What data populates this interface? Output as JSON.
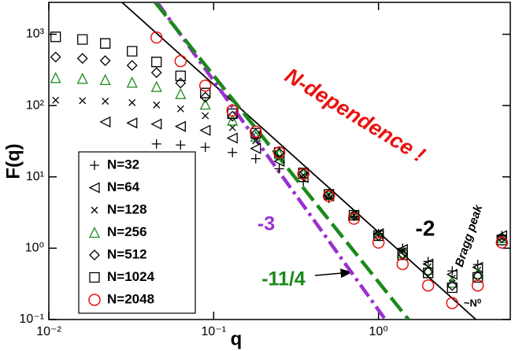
{
  "chart_data": {
    "type": "scatter",
    "xlabel": "q",
    "ylabel": "F(q)",
    "log_x": true,
    "log_y": true,
    "xlim": [
      0.01,
      6.3
    ],
    "ylim": [
      0.1,
      2800
    ],
    "xticks": [
      {
        "value": 0.01,
        "label": "10⁻²"
      },
      {
        "value": 0.1,
        "label": "10⁻¹"
      },
      {
        "value": 1,
        "label": "10⁰"
      }
    ],
    "yticks": [
      {
        "value": 0.1,
        "label": "10⁻¹"
      },
      {
        "value": 1,
        "label": "10⁰"
      },
      {
        "value": 10,
        "label": "10¹"
      },
      {
        "value": 100,
        "label": "10²"
      },
      {
        "value": 1000,
        "label": "10³"
      }
    ],
    "legend": "lower left",
    "series": [
      {
        "name": "N=32",
        "marker": "plus",
        "color": "#000000",
        "x": [
          0.045,
          0.063,
          0.089,
          0.13,
          0.18,
          0.25,
          0.35,
          0.5,
          0.71,
          1.0,
          1.4,
          2.0,
          2.8,
          4.0,
          5.6
        ],
        "values": [
          29,
          28,
          26,
          22,
          18,
          13,
          8.6,
          5.0,
          2.8,
          1.6,
          1.0,
          0.65,
          0.48,
          0.59,
          1.5
        ]
      },
      {
        "name": "N=64",
        "marker": "triangle-left",
        "color": "#000000",
        "x": [
          0.022,
          0.032,
          0.045,
          0.063,
          0.089,
          0.13,
          0.18,
          0.25,
          0.35,
          0.5,
          0.71,
          1.0,
          1.4,
          2.0,
          2.8,
          4.0,
          5.6
        ],
        "values": [
          59,
          57,
          55,
          51,
          45,
          35,
          25,
          16.5,
          9.8,
          5.4,
          2.9,
          1.6,
          0.96,
          0.6,
          0.43,
          0.54,
          1.5
        ]
      },
      {
        "name": "N=128",
        "marker": "cross",
        "color": "#000000",
        "x": [
          0.011,
          0.016,
          0.022,
          0.032,
          0.045,
          0.063,
          0.089,
          0.13,
          0.18,
          0.25,
          0.35,
          0.5,
          0.71,
          1.0,
          1.4,
          2.0,
          2.8,
          4.0,
          5.6
        ],
        "values": [
          119,
          117,
          115,
          110,
          102,
          90,
          72,
          49,
          32,
          19,
          10.6,
          5.6,
          2.9,
          1.6,
          0.91,
          0.55,
          0.38,
          0.49,
          1.4
        ]
      },
      {
        "name": "N=256",
        "marker": "triangle-up",
        "color": "#1a8a1a",
        "x": [
          0.011,
          0.016,
          0.022,
          0.032,
          0.045,
          0.063,
          0.089,
          0.13,
          0.18,
          0.25,
          0.35,
          0.5,
          0.71,
          1.0,
          1.4,
          2.0,
          2.8,
          4.0,
          5.6
        ],
        "values": [
          245,
          239,
          230,
          211,
          184,
          146,
          104,
          62,
          37,
          21,
          11,
          5.6,
          2.9,
          1.5,
          0.86,
          0.5,
          0.33,
          0.44,
          1.4
        ]
      },
      {
        "name": "N=512",
        "marker": "diamond",
        "color": "#000000",
        "x": [
          0.011,
          0.016,
          0.022,
          0.032,
          0.045,
          0.063,
          0.089,
          0.13,
          0.18,
          0.25,
          0.35,
          0.5,
          0.71,
          1.0,
          1.4,
          2.0,
          2.8,
          4.0,
          5.6
        ],
        "values": [
          479,
          458,
          426,
          366,
          290,
          207,
          131,
          71,
          40,
          21.5,
          11.2,
          5.7,
          2.9,
          1.5,
          0.83,
          0.47,
          0.3,
          0.41,
          1.4
        ]
      },
      {
        "name": "N=1024",
        "marker": "square",
        "color": "#000000",
        "x": [
          0.011,
          0.016,
          0.022,
          0.032,
          0.045,
          0.063,
          0.089,
          0.13,
          0.18,
          0.25,
          0.35,
          0.5,
          0.71,
          1.0,
          1.4,
          2.0,
          2.8,
          4.0,
          5.6
        ],
        "values": [
          920,
          845,
          743,
          578,
          409,
          261,
          150,
          77,
          41,
          22,
          11.4,
          5.7,
          2.9,
          1.5,
          0.81,
          0.45,
          0.28,
          0.39,
          1.3
        ]
      },
      {
        "name": "N=2048",
        "marker": "circle",
        "color": "#e8120f",
        "x": [
          0.045,
          0.063,
          0.089,
          0.13,
          0.18,
          0.25,
          0.35,
          0.5,
          0.71,
          1.0,
          1.4,
          2.0,
          2.8,
          4.0,
          5.6
        ],
        "values": [
          900,
          420,
          190,
          85,
          43,
          22,
          11,
          5.4,
          2.6,
          1.2,
          0.6,
          0.3,
          0.17,
          0.3,
          1.2
        ]
      }
    ],
    "reference_lines": [
      {
        "label": "-2",
        "color": "#000000",
        "style": "solid",
        "x": [
          0.0278,
          3.9
        ],
        "values": [
          2800,
          0.1
        ]
      },
      {
        "label": "-3",
        "color": "#9b30d0",
        "style": "dashdot",
        "x": [
          0.0455,
          1.1
        ],
        "values": [
          2800,
          0.1
        ]
      },
      {
        "label": "-11/4",
        "color": "#1a8a1a",
        "style": "dashed",
        "x": [
          0.0442,
          1.52
        ],
        "values": [
          2800,
          0.1
        ]
      }
    ],
    "annotations": [
      "N-dependence !",
      "Bragg peak",
      "~N⁰"
    ]
  }
}
